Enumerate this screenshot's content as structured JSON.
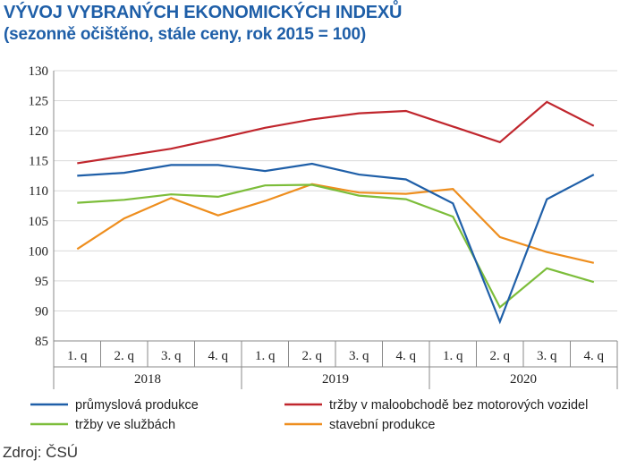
{
  "title": "VÝVOJ VYBRANÝCH EKONOMICKÝCH INDEXŮ",
  "subtitle": "(sezonně očištěno, stále ceny, rok 2015 = 100)",
  "source": "Zdroj: ČSÚ",
  "colors": {
    "title": "#1f5fa8",
    "prumysl": "#1f5fa8",
    "maloobchod": "#c0262d",
    "sluzby": "#7cbd3a",
    "stavebni": "#ee8e1e",
    "grid": "#d9d9d9",
    "axis": "#8a8a8a"
  },
  "chart_data": {
    "type": "line",
    "categories": [
      "1. q",
      "2. q",
      "3. q",
      "4. q",
      "1. q",
      "2. q",
      "3. q",
      "4. q",
      "1. q",
      "2. q",
      "3. q",
      "4. q"
    ],
    "year_groups": [
      {
        "label": "2018",
        "from": 0,
        "to": 3
      },
      {
        "label": "2019",
        "from": 4,
        "to": 7
      },
      {
        "label": "2020",
        "from": 8,
        "to": 11
      }
    ],
    "yticks": [
      "130",
      "125",
      "120",
      "115",
      "110",
      "105",
      "100",
      "95",
      "90",
      "85"
    ],
    "ylim": [
      85,
      130
    ],
    "grid": true,
    "legend_position": "bottom",
    "series": [
      {
        "key": "prumysl",
        "name": "průmyslová produkce",
        "values": [
          112.5,
          113.0,
          114.3,
          114.3,
          113.3,
          114.5,
          112.7,
          111.9,
          107.9,
          88.2,
          108.6,
          112.7
        ]
      },
      {
        "key": "maloobchod",
        "name": "tržby v maloobchodě bez motorových vozidel",
        "values": [
          114.6,
          115.8,
          117.0,
          118.7,
          120.5,
          121.9,
          122.9,
          123.3,
          120.7,
          118.1,
          124.8,
          120.8
        ]
      },
      {
        "key": "sluzby",
        "name": "tržby ve službách",
        "values": [
          108.0,
          108.5,
          109.4,
          109.0,
          110.9,
          111.0,
          109.2,
          108.6,
          105.7,
          90.6,
          97.1,
          94.8
        ]
      },
      {
        "key": "stavebni",
        "name": "stavební produkce",
        "values": [
          100.3,
          105.4,
          108.8,
          105.9,
          108.3,
          111.1,
          109.7,
          109.5,
          110.3,
          102.3,
          99.8,
          98.0
        ]
      }
    ]
  }
}
